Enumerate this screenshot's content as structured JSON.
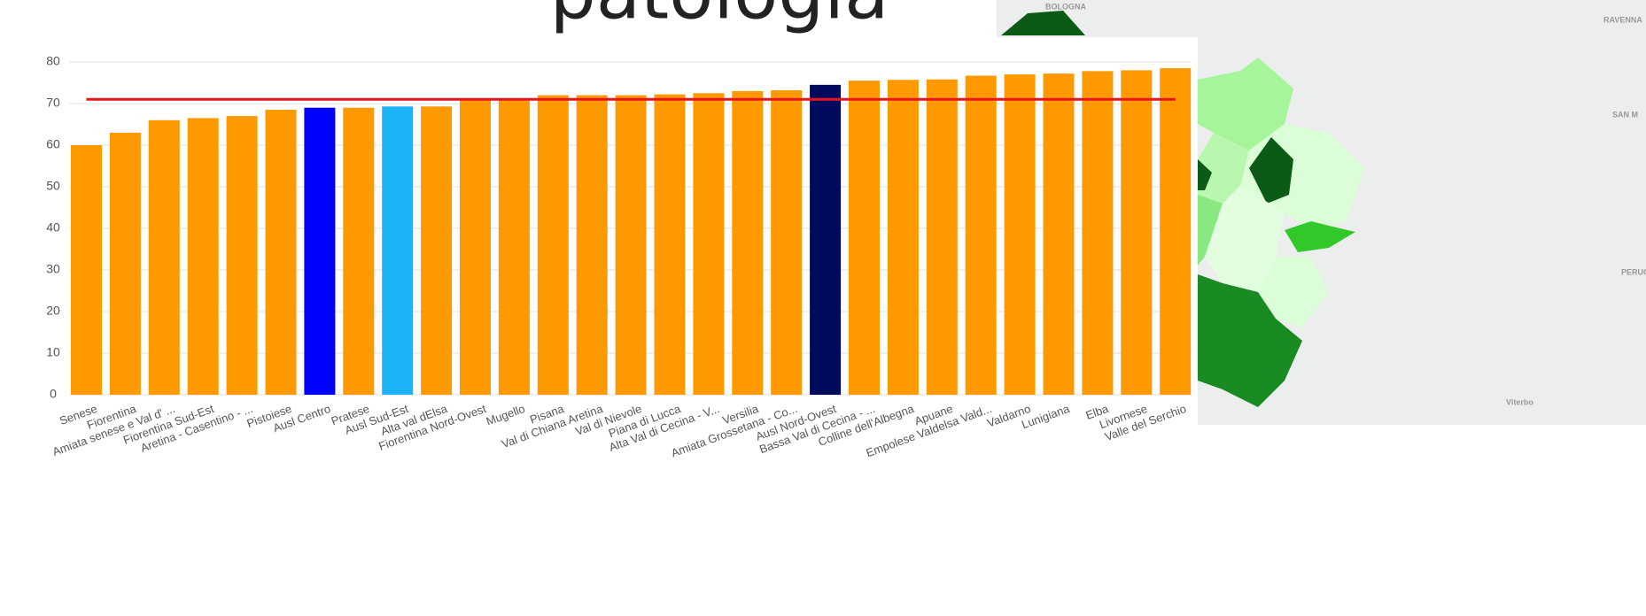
{
  "chart_data": {
    "type": "bar",
    "title": "patologia",
    "categories": [
      "Senese",
      "Fiorentina",
      "Amiata senese e Val d' ...",
      "Fiorentina Sud-Est",
      "Aretina - Casentino - ...",
      "Pistoiese",
      "Ausl Centro",
      "Pratese",
      "Ausl Sud-Est",
      "Alta val dElsa",
      "Fiorentina Nord-Ovest",
      "Mugello",
      "Pisana",
      "Val di Chiana Aretina",
      "Val di Nievole",
      "Piana di Lucca",
      "Alta Val di Cecina - V...",
      "Versilia",
      "Amiata Grossetana - Co...",
      "Ausl Nord-Ovest",
      "Bassa Val di Cecina - ...",
      "Colline dell'Albegna",
      "Apuane",
      "Empolese Valdelsa Vald...",
      "Valdarno",
      "Lunigiana",
      "Elba",
      "Livornese",
      "Valle del Serchio"
    ],
    "values": [
      60,
      63,
      66,
      66.5,
      67,
      68.5,
      69,
      69,
      69.3,
      69.3,
      71,
      71,
      72,
      72,
      72,
      72.2,
      72.5,
      73,
      73.2,
      74.5,
      75.5,
      75.7,
      75.8,
      76.7,
      77,
      77.2,
      77.8,
      78,
      78.5
    ],
    "colors": [
      "#ff9900",
      "#ff9900",
      "#ff9900",
      "#ff9900",
      "#ff9900",
      "#ff9900",
      "#0000ff",
      "#ff9900",
      "#1cb4f7",
      "#ff9900",
      "#ff9900",
      "#ff9900",
      "#ff9900",
      "#ff9900",
      "#ff9900",
      "#ff9900",
      "#ff9900",
      "#ff9900",
      "#ff9900",
      "#000a5c",
      "#ff9900",
      "#ff9900",
      "#ff9900",
      "#ff9900",
      "#ff9900",
      "#ff9900",
      "#ff9900",
      "#ff9900",
      "#ff9900"
    ],
    "reference_value": 71,
    "reference_color": "#e8141c",
    "ylim": [
      0,
      80
    ],
    "yticks": [
      0,
      10,
      20,
      30,
      40,
      50,
      60,
      70,
      80
    ],
    "grid": true
  },
  "map": {
    "labels": [
      "BOLOGNA",
      "RAVENNA",
      "SAN M",
      "PERUG",
      "Viterbo"
    ]
  }
}
